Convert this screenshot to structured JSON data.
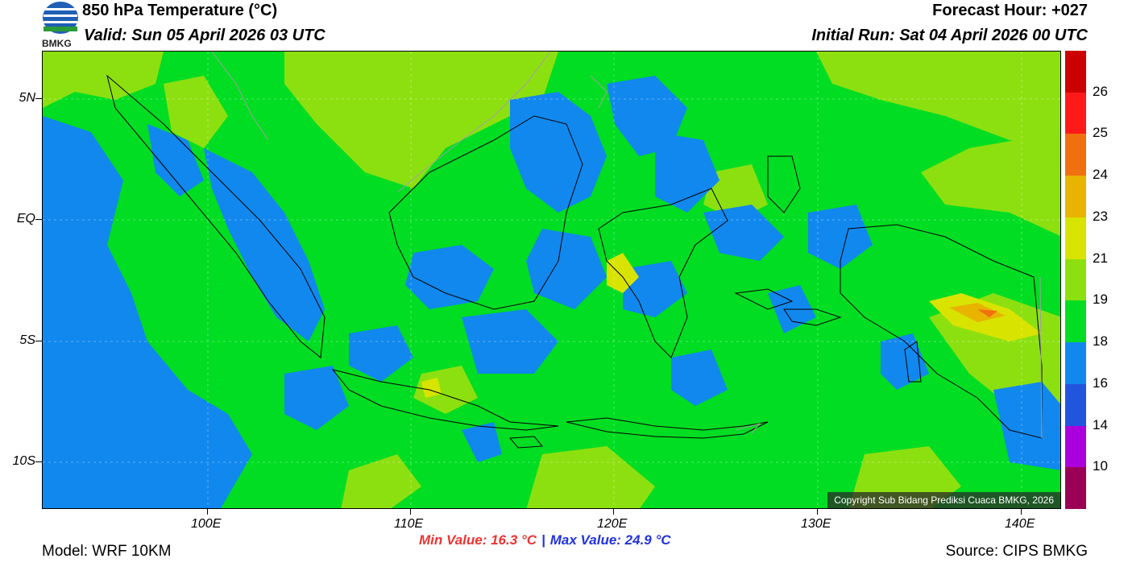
{
  "header": {
    "title": "850 hPa Temperature (°C)",
    "valid": "Valid: Sun 05 April 2026 03 UTC",
    "forecast_hour": "Forecast Hour: +027",
    "initial_run": "Initial Run: Sat 04 April 2026 00 UTC"
  },
  "logo": {
    "text": "BMKG",
    "icon": "bmkg-logo-icon"
  },
  "axes": {
    "lat_labels": [
      "5N",
      "EQ",
      "5S",
      "10S"
    ],
    "lon_labels": [
      "100E",
      "110E",
      "120E",
      "130E",
      "140E"
    ]
  },
  "stats": {
    "min_value": "Min Value: 16.3 °C",
    "separator": "|",
    "max_value": "Max Value: 24.9 °C"
  },
  "footer": {
    "model": "Model: WRF 10KM",
    "source": "Source: CIPS BMKG"
  },
  "copyright": "Copyright Sub Bidang Prediksi Cuaca BMKG, 2026",
  "colorbar": {
    "labels": [
      "26",
      "25",
      "24",
      "23",
      "21",
      "19",
      "18",
      "16",
      "14",
      "10"
    ],
    "colors_top_to_bottom": [
      "#cc0000",
      "#ff1a1a",
      "#f07010",
      "#e8b400",
      "#d8e400",
      "#8de010",
      "#00dd22",
      "#1188ee",
      "#2255dd",
      "#aa00dd",
      "#9a0055"
    ]
  },
  "map_colors": {
    "band_16_18": "#1188ee",
    "band_18_19": "#00dd22",
    "band_19_21": "#8de010",
    "band_21_23": "#d8e400",
    "band_23_24": "#e8b400",
    "band_24_25": "#f07010"
  }
}
